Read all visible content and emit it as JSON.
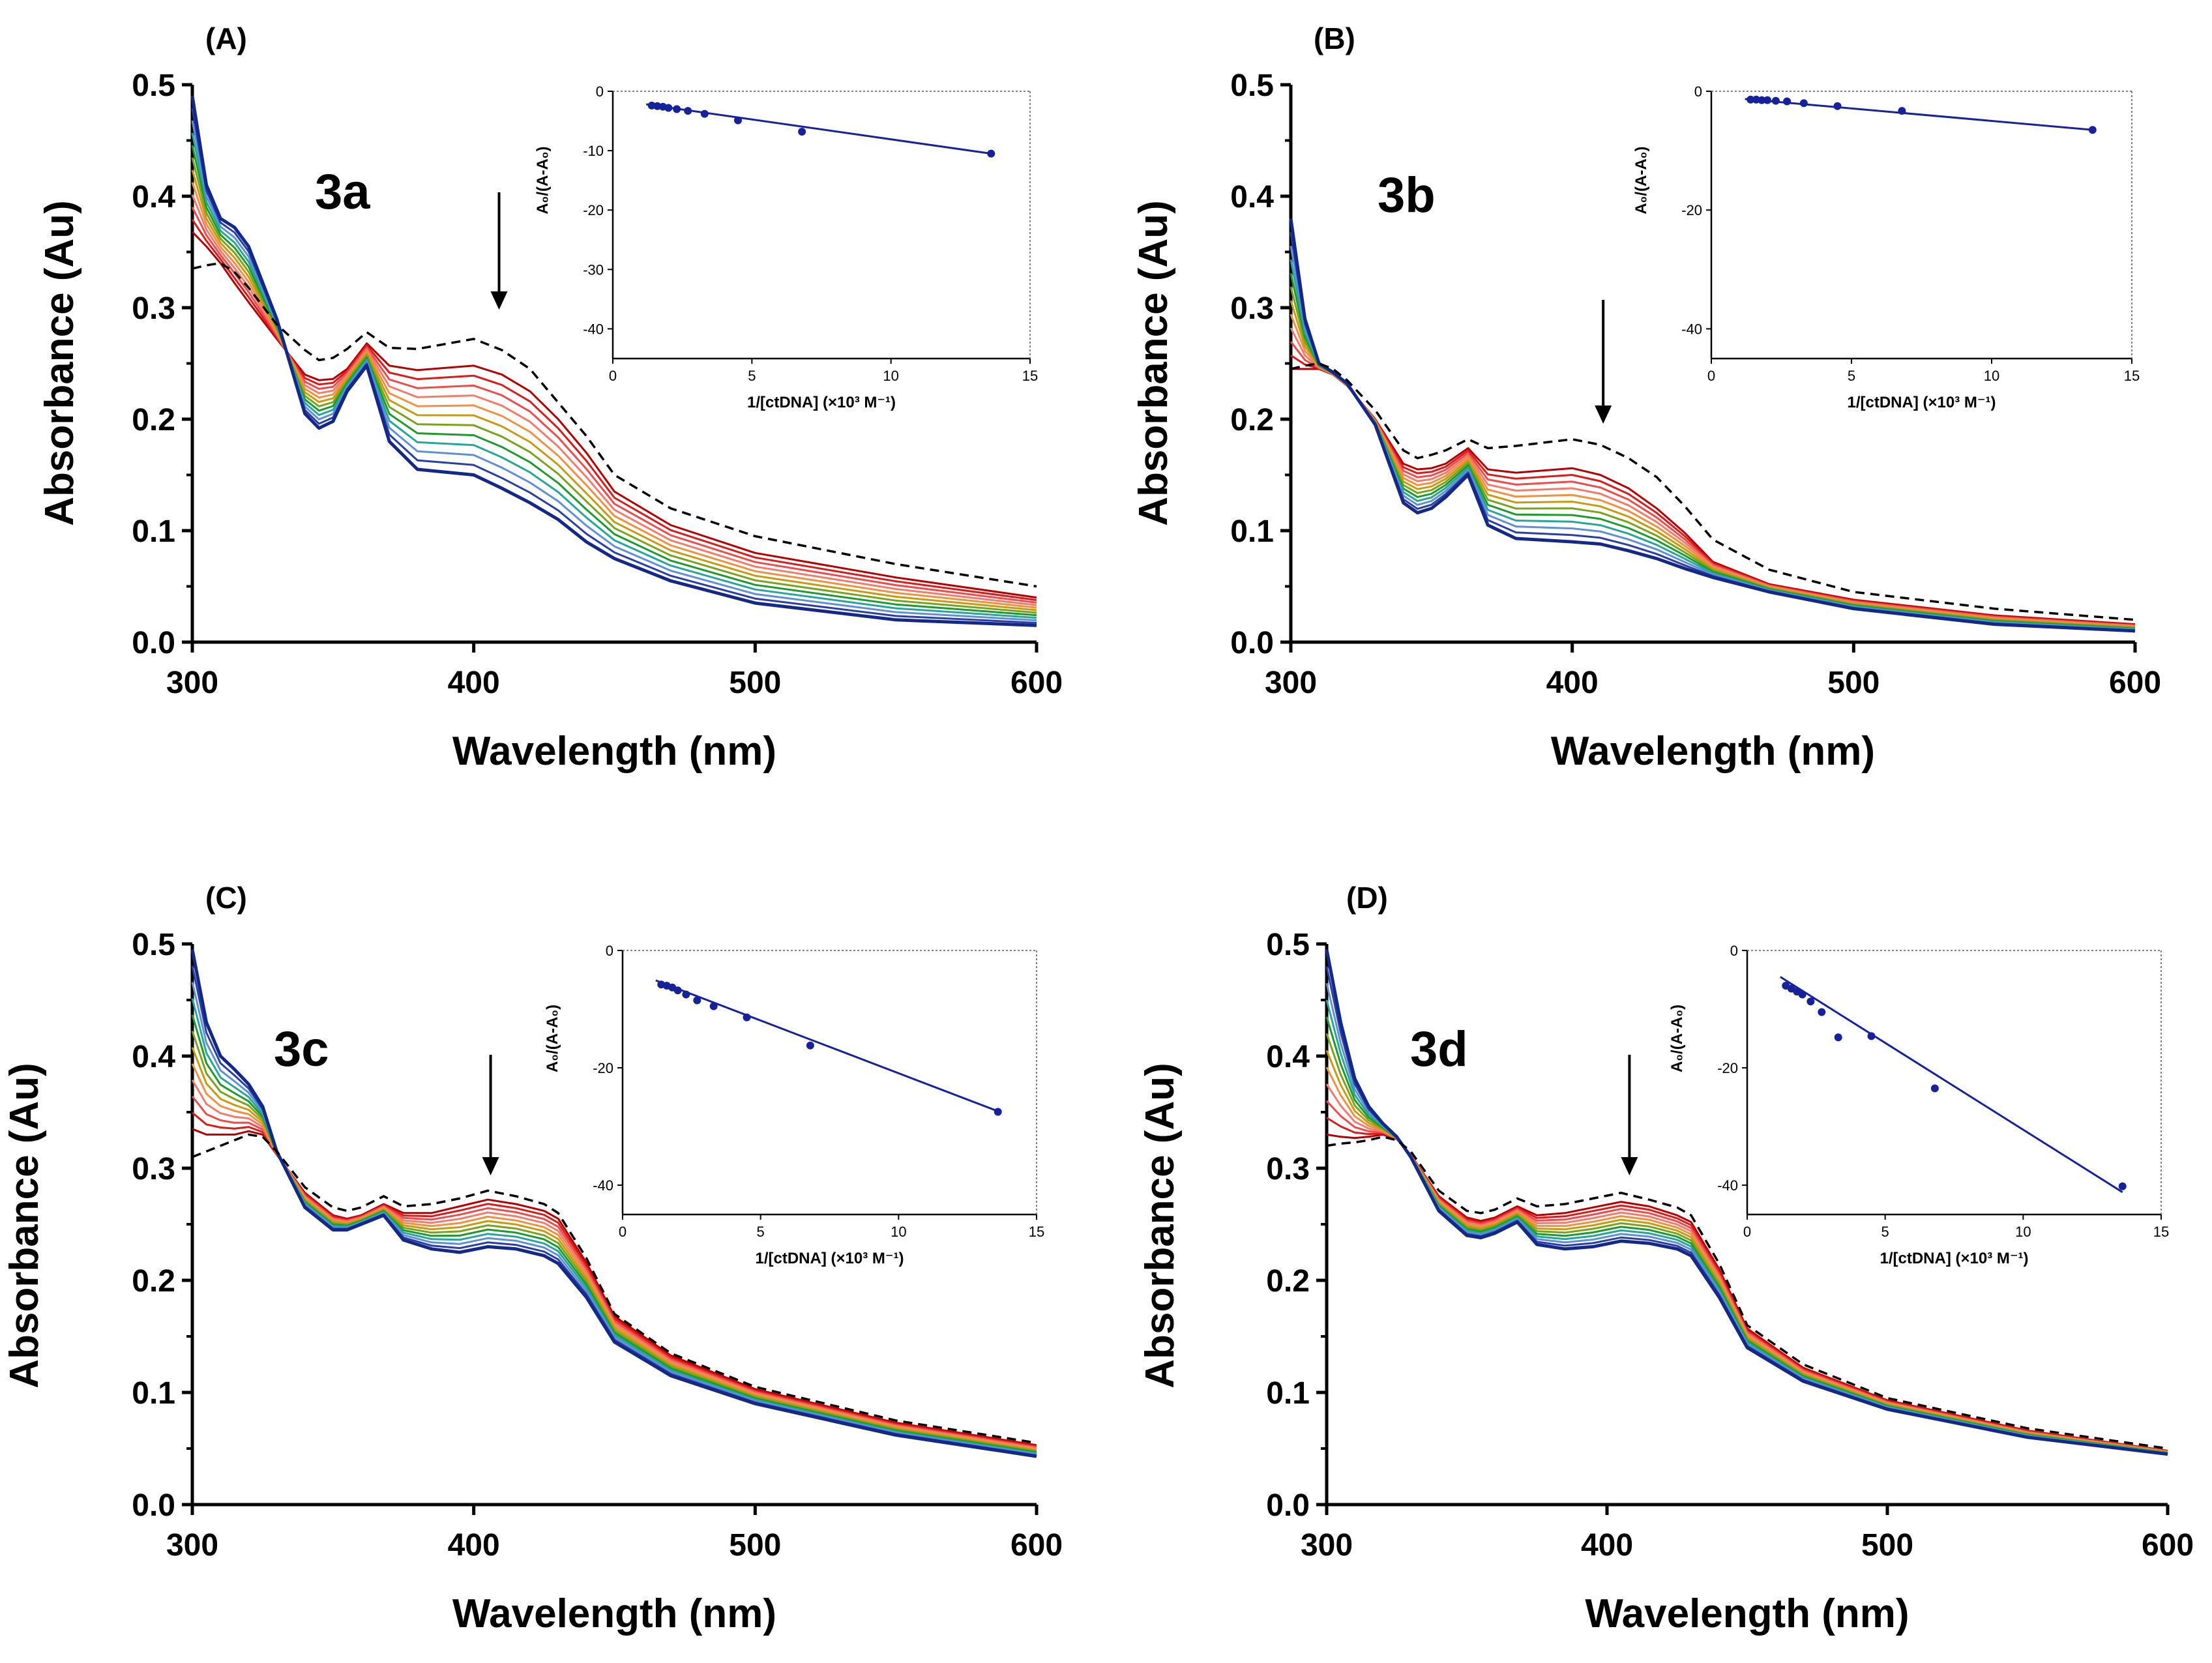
{
  "figure": {
    "xlabel": "Wavelength (nm)",
    "ylabel": "Absorbance (Au)",
    "inset_xlabel": "1/[ctDNA] (×10³ M⁻¹)",
    "inset_ylabel": "A₀/(A-A₀)",
    "xticks": [
      "300",
      "400",
      "500",
      "600"
    ],
    "yticks": [
      "0.0",
      "0.1",
      "0.2",
      "0.3",
      "0.4",
      "0.5"
    ],
    "inset_xticks": [
      "0",
      "5",
      "10",
      "15"
    ],
    "colors": {
      "free": "#000000",
      "titration": [
        "#b40000",
        "#dd1a1a",
        "#ef4b4b",
        "#f47a6b",
        "#f09040",
        "#c89a10",
        "#7aa21c",
        "#1e9a2c",
        "#26a69a",
        "#5f8fd6",
        "#2a3ea8",
        "#132888"
      ],
      "inset": "#15229a"
    }
  },
  "chart_data": [
    {
      "panel": "(A)",
      "compound": "3a",
      "type": "line",
      "title": "",
      "xlabel": "Wavelength (nm)",
      "ylabel": "Absorbance (Au)",
      "xlim": [
        300,
        600
      ],
      "ylim": [
        0,
        0.5
      ],
      "arrow_at_nm": 409,
      "spectra": {
        "x": [
          300,
          305,
          310,
          315,
          320,
          330,
          340,
          345,
          350,
          355,
          362,
          370,
          380,
          400,
          410,
          420,
          430,
          440,
          450,
          470,
          500,
          550,
          600
        ],
        "free_dna_dashed": [
          0.335,
          0.338,
          0.34,
          0.332,
          0.318,
          0.285,
          0.262,
          0.253,
          0.255,
          0.263,
          0.278,
          0.264,
          0.263,
          0.272,
          0.262,
          0.245,
          0.215,
          0.185,
          0.15,
          0.12,
          0.095,
          0.07,
          0.05
        ],
        "series_first_red": [
          0.368,
          0.355,
          0.34,
          0.322,
          0.305,
          0.272,
          0.24,
          0.235,
          0.236,
          0.245,
          0.268,
          0.248,
          0.244,
          0.248,
          0.24,
          0.225,
          0.2,
          0.17,
          0.135,
          0.105,
          0.08,
          0.058,
          0.04
        ],
        "series_last_blue": [
          0.49,
          0.41,
          0.38,
          0.372,
          0.355,
          0.29,
          0.205,
          0.192,
          0.198,
          0.225,
          0.248,
          0.18,
          0.155,
          0.15,
          0.138,
          0.125,
          0.11,
          0.09,
          0.075,
          0.055,
          0.035,
          0.02,
          0.015
        ],
        "series_count": 12
      },
      "inset": {
        "type": "scatter",
        "xlim": [
          0,
          15
        ],
        "ylim": [
          -45,
          0
        ],
        "yticks": [
          "-40",
          "-30",
          "-20",
          "-10",
          "0"
        ],
        "x": [
          1.4,
          1.6,
          1.8,
          2.0,
          2.3,
          2.7,
          3.3,
          4.5,
          6.8,
          13.6
        ],
        "y": [
          -2.4,
          -2.5,
          -2.6,
          -2.8,
          -3.0,
          -3.3,
          -3.8,
          -4.9,
          -6.8,
          -10.5
        ],
        "fit": [
          [
            1.2,
            -2.2
          ],
          [
            13.6,
            -10.5
          ]
        ]
      }
    },
    {
      "panel": "(B)",
      "compound": "3b",
      "type": "line",
      "title": "",
      "xlabel": "Wavelength (nm)",
      "ylabel": "Absorbance (Au)",
      "xlim": [
        300,
        600
      ],
      "ylim": [
        0,
        0.5
      ],
      "arrow_at_nm": 411,
      "spectra": {
        "x": [
          300,
          305,
          310,
          315,
          320,
          330,
          340,
          345,
          350,
          355,
          363,
          370,
          380,
          400,
          410,
          420,
          430,
          440,
          450,
          470,
          500,
          550,
          600
        ],
        "free_dna_dashed": [
          0.245,
          0.248,
          0.25,
          0.245,
          0.235,
          0.208,
          0.172,
          0.165,
          0.168,
          0.172,
          0.182,
          0.174,
          0.176,
          0.182,
          0.177,
          0.165,
          0.148,
          0.122,
          0.092,
          0.065,
          0.045,
          0.03,
          0.02
        ],
        "series_first_red": [
          0.245,
          0.245,
          0.245,
          0.24,
          0.23,
          0.2,
          0.16,
          0.155,
          0.156,
          0.16,
          0.174,
          0.155,
          0.152,
          0.156,
          0.15,
          0.138,
          0.12,
          0.098,
          0.072,
          0.052,
          0.038,
          0.024,
          0.016
        ],
        "series_last_blue": [
          0.38,
          0.29,
          0.25,
          0.242,
          0.232,
          0.195,
          0.125,
          0.116,
          0.12,
          0.13,
          0.15,
          0.105,
          0.093,
          0.09,
          0.088,
          0.082,
          0.075,
          0.066,
          0.058,
          0.045,
          0.03,
          0.016,
          0.01
        ],
        "series_count": 12
      },
      "inset": {
        "type": "scatter",
        "xlim": [
          0,
          15
        ],
        "ylim": [
          -45,
          0
        ],
        "yticks": [
          "-40",
          "-20",
          "0"
        ],
        "x": [
          1.4,
          1.6,
          1.8,
          2.0,
          2.3,
          2.7,
          3.3,
          4.5,
          6.8,
          13.6
        ],
        "y": [
          -1.4,
          -1.4,
          -1.5,
          -1.5,
          -1.6,
          -1.7,
          -2.0,
          -2.5,
          -3.3,
          -6.5
        ],
        "fit": [
          [
            1.2,
            -1.3
          ],
          [
            13.6,
            -6.5
          ]
        ]
      }
    },
    {
      "panel": "(C)",
      "compound": "3c",
      "type": "line",
      "title": "",
      "xlabel": "Wavelength (nm)",
      "ylabel": "Absorbance (Au)",
      "xlim": [
        300,
        600
      ],
      "ylim": [
        0,
        0.5
      ],
      "arrow_at_nm": 406,
      "spectra": {
        "x": [
          300,
          305,
          310,
          315,
          320,
          325,
          330,
          340,
          350,
          355,
          360,
          368,
          375,
          385,
          395,
          405,
          415,
          425,
          430,
          440,
          450,
          470,
          500,
          550,
          600
        ],
        "free_dna_dashed": [
          0.31,
          0.315,
          0.32,
          0.325,
          0.33,
          0.328,
          0.315,
          0.283,
          0.265,
          0.262,
          0.265,
          0.275,
          0.266,
          0.268,
          0.273,
          0.28,
          0.275,
          0.268,
          0.26,
          0.22,
          0.17,
          0.135,
          0.105,
          0.075,
          0.055
        ],
        "series_first_red": [
          0.335,
          0.33,
          0.33,
          0.33,
          0.333,
          0.33,
          0.312,
          0.278,
          0.258,
          0.255,
          0.258,
          0.268,
          0.26,
          0.26,
          0.266,
          0.272,
          0.268,
          0.262,
          0.255,
          0.216,
          0.168,
          0.133,
          0.103,
          0.073,
          0.053
        ],
        "series_last_blue": [
          0.495,
          0.43,
          0.4,
          0.388,
          0.375,
          0.355,
          0.315,
          0.265,
          0.245,
          0.245,
          0.25,
          0.258,
          0.236,
          0.228,
          0.225,
          0.23,
          0.228,
          0.222,
          0.215,
          0.185,
          0.145,
          0.115,
          0.09,
          0.062,
          0.043
        ],
        "series_count": 12
      },
      "inset": {
        "type": "scatter",
        "xlim": [
          0,
          15
        ],
        "ylim": [
          -45,
          0
        ],
        "yticks": [
          "-40",
          "-20",
          "0"
        ],
        "x": [
          1.4,
          1.6,
          1.8,
          2.0,
          2.3,
          2.7,
          3.3,
          4.5,
          6.8,
          13.6
        ],
        "y": [
          -5.8,
          -6.0,
          -6.3,
          -6.8,
          -7.5,
          -8.5,
          -9.5,
          -11.4,
          -16.2,
          -27.5
        ],
        "fit": [
          [
            1.2,
            -5.1
          ],
          [
            13.6,
            -27.4
          ]
        ]
      }
    },
    {
      "panel": "(D)",
      "compound": "3d",
      "type": "line",
      "title": "",
      "xlabel": "Wavelength (nm)",
      "ylabel": "Absorbance (Au)",
      "xlim": [
        300,
        600
      ],
      "ylim": [
        0,
        0.5
      ],
      "arrow_at_nm": 408,
      "spectra": {
        "x": [
          300,
          305,
          310,
          315,
          320,
          325,
          330,
          340,
          350,
          355,
          360,
          368,
          375,
          385,
          395,
          405,
          415,
          425,
          430,
          440,
          450,
          470,
          500,
          550,
          600
        ],
        "free_dna_dashed": [
          0.32,
          0.322,
          0.323,
          0.325,
          0.328,
          0.325,
          0.315,
          0.28,
          0.262,
          0.26,
          0.263,
          0.273,
          0.266,
          0.268,
          0.273,
          0.278,
          0.272,
          0.265,
          0.258,
          0.215,
          0.16,
          0.125,
          0.095,
          0.068,
          0.05
        ],
        "series_first_red": [
          0.33,
          0.328,
          0.327,
          0.328,
          0.33,
          0.326,
          0.312,
          0.275,
          0.256,
          0.253,
          0.256,
          0.266,
          0.258,
          0.26,
          0.265,
          0.27,
          0.266,
          0.258,
          0.252,
          0.21,
          0.157,
          0.122,
          0.093,
          0.066,
          0.048
        ],
        "series_last_blue": [
          0.495,
          0.43,
          0.38,
          0.355,
          0.34,
          0.328,
          0.31,
          0.262,
          0.24,
          0.238,
          0.242,
          0.252,
          0.232,
          0.228,
          0.23,
          0.235,
          0.233,
          0.228,
          0.222,
          0.185,
          0.14,
          0.11,
          0.085,
          0.06,
          0.045
        ],
        "series_count": 12
      },
      "inset": {
        "type": "scatter",
        "xlim": [
          0,
          15
        ],
        "ylim": [
          -45,
          0
        ],
        "yticks": [
          "-40",
          "-20",
          "0"
        ],
        "x": [
          1.4,
          1.6,
          1.8,
          2.0,
          2.3,
          2.7,
          3.3,
          4.5,
          6.8,
          13.6
        ],
        "y": [
          -6.0,
          -6.5,
          -7.0,
          -7.5,
          -8.7,
          -10.5,
          -14.8,
          -14.6,
          -23.5,
          -40.2
        ],
        "fit": [
          [
            1.2,
            -4.5
          ],
          [
            13.6,
            -41.2
          ]
        ]
      }
    }
  ]
}
